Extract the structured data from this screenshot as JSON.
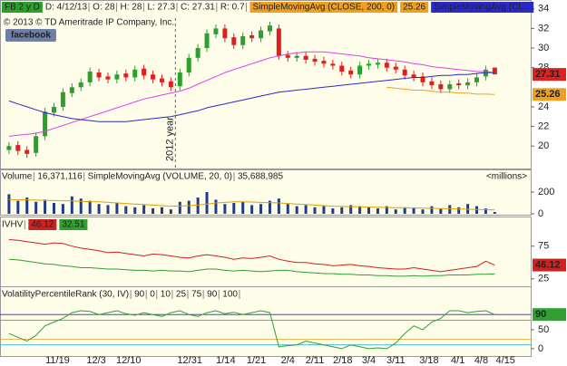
{
  "chart_data": [
    {
      "type": "candlestick",
      "title": "FB 2 y D",
      "header": [
        "D: 4/12/13",
        "O: 28",
        "H: 28",
        "L: 27.3",
        "C: 27.31",
        "R: 0.7"
      ],
      "copyright": "© 2013 © TD Ameritrade IP Company, Inc.",
      "badge": "facebook",
      "up_color": "#2ca02c",
      "down_color": "#e02020",
      "open": [
        19.6,
        20.1,
        19.6,
        19.3,
        21.0,
        23.4,
        24.0,
        25.4,
        26.0,
        26.5,
        27.5,
        27.1,
        26.8,
        27.4,
        27.0,
        27.9,
        27.3,
        26.9,
        26.6,
        26.1,
        27.5,
        29.0,
        30.0,
        31.4,
        32.0,
        31.1,
        30.3,
        31.3,
        31.0,
        31.7,
        32.0,
        29.3,
        29.0,
        29.2,
        28.9,
        28.7,
        28.4,
        28.2,
        27.7,
        27.3,
        28.2,
        28.3,
        28.5,
        28.1,
        27.8,
        27.3,
        27.1,
        26.6,
        26.3,
        25.8,
        26.4,
        26.2,
        26.5,
        27.1,
        28
      ],
      "high": [
        20.4,
        20.5,
        20.0,
        21.4,
        23.9,
        24.4,
        25.9,
        26.4,
        26.9,
        28.0,
        27.9,
        27.5,
        27.7,
        27.8,
        28.2,
        28.3,
        27.7,
        27.3,
        27.0,
        27.9,
        29.4,
        30.4,
        31.9,
        32.4,
        32.4,
        31.5,
        31.6,
        31.7,
        32.2,
        32.7,
        32.4,
        29.7,
        29.6,
        29.6,
        29.3,
        29.1,
        28.8,
        28.6,
        28.1,
        28.6,
        28.8,
        28.9,
        28.9,
        28.5,
        28.2,
        27.7,
        27.5,
        27.0,
        26.7,
        26.7,
        26.8,
        26.9,
        27.4,
        28.2,
        28
      ],
      "low": [
        19.2,
        19.1,
        18.8,
        18.9,
        20.6,
        23.0,
        23.6,
        25.0,
        25.6,
        26.1,
        26.6,
        26.4,
        26.4,
        26.6,
        26.6,
        26.8,
        26.4,
        26.1,
        25.6,
        25.7,
        27.1,
        28.6,
        29.6,
        31.0,
        30.6,
        29.9,
        29.9,
        30.6,
        30.6,
        31.3,
        28.8,
        28.6,
        28.6,
        28.4,
        28.2,
        28.0,
        27.8,
        27.2,
        26.9,
        26.9,
        27.8,
        27.9,
        27.6,
        27.4,
        26.8,
        26.6,
        26.1,
        25.8,
        25.4,
        25.4,
        25.8,
        25.8,
        26.1,
        26.7,
        27.3
      ],
      "close": [
        20.0,
        19.5,
        19.2,
        21.0,
        23.5,
        24.0,
        25.5,
        26.0,
        26.5,
        27.6,
        27.0,
        26.8,
        27.3,
        27.0,
        27.8,
        27.2,
        26.8,
        26.5,
        26.0,
        27.5,
        29.0,
        30.0,
        31.5,
        32.0,
        31.0,
        30.3,
        31.2,
        31.0,
        31.8,
        32.3,
        29.2,
        29.0,
        29.2,
        28.8,
        28.6,
        28.4,
        28.2,
        27.6,
        27.3,
        28.2,
        28.4,
        28.5,
        28.0,
        27.8,
        27.2,
        27.0,
        26.5,
        26.2,
        25.8,
        26.3,
        26.2,
        26.5,
        27.0,
        27.8,
        27.31
      ],
      "series": [
        {
          "color": "#e040e0",
          "values": [
            21.0,
            21.1,
            21.2,
            21.3,
            21.5,
            21.8,
            22.1,
            22.4,
            22.7,
            23.0,
            23.3,
            23.6,
            23.9,
            24.2,
            24.5,
            24.8,
            25.0,
            25.2,
            25.4,
            25.6,
            25.9,
            26.3,
            26.7,
            27.1,
            27.5,
            27.8,
            28.1,
            28.4,
            28.7,
            29.0,
            29.2,
            29.4,
            29.5,
            29.6,
            29.6,
            29.6,
            29.5,
            29.4,
            29.3,
            29.2,
            29.0,
            28.9,
            28.8,
            28.7,
            28.6,
            28.4,
            28.3,
            28.1,
            28.0,
            27.9,
            27.8,
            27.7,
            27.6,
            27.6,
            27.5
          ]
        },
        {
          "name": "SimpleMovingAvg (CL...",
          "color": "#2a2ac8",
          "values": [
            24.6,
            24.3,
            24.0,
            23.7,
            23.4,
            23.2,
            23.0,
            22.8,
            22.7,
            22.6,
            22.5,
            22.5,
            22.5,
            22.5,
            22.6,
            22.7,
            22.8,
            22.9,
            23.0,
            23.2,
            23.4,
            23.6,
            23.9,
            24.1,
            24.3,
            24.5,
            24.7,
            24.9,
            25.1,
            25.3,
            25.5,
            25.6,
            25.7,
            25.8,
            25.9,
            26.0,
            26.1,
            26.2,
            26.3,
            26.4,
            26.5,
            26.6,
            26.7,
            26.8,
            26.9,
            27.0,
            27.0,
            27.1,
            27.2,
            27.2,
            27.3,
            27.3,
            27.4,
            27.5,
            27.5
          ]
        },
        {
          "name": "SimpleMovingAvg (CLOSE, 200, 0)",
          "color": "#f0a020",
          "values": [
            null,
            null,
            null,
            null,
            null,
            null,
            null,
            null,
            null,
            null,
            null,
            null,
            null,
            null,
            null,
            null,
            null,
            null,
            null,
            null,
            null,
            null,
            null,
            null,
            null,
            null,
            null,
            null,
            null,
            null,
            null,
            null,
            null,
            null,
            null,
            null,
            null,
            null,
            null,
            null,
            null,
            null,
            26.0,
            25.9,
            25.8,
            25.7,
            25.7,
            25.6,
            25.5,
            25.5,
            25.4,
            25.4,
            25.3,
            25.3,
            25.26
          ]
        }
      ],
      "annotation": {
        "x": 18.5,
        "label": "2012 year"
      },
      "xlim": [
        -1,
        58
      ],
      "ylim": [
        17.8,
        34.9
      ],
      "yticks": [
        20,
        22,
        24,
        28,
        30,
        32,
        34
      ]
    },
    {
      "type": "bar",
      "title": "Volume",
      "current": "16,371,116",
      "unit": "<millions>",
      "color": "#1f3c88",
      "values": [
        180,
        120,
        150,
        110,
        130,
        100,
        90,
        160,
        140,
        120,
        90,
        80,
        100,
        70,
        60,
        80,
        50,
        60,
        40,
        110,
        120,
        150,
        200,
        130,
        90,
        100,
        110,
        80,
        90,
        120,
        140,
        90,
        70,
        80,
        60,
        70,
        50,
        60,
        80,
        70,
        60,
        50,
        70,
        40,
        60,
        50,
        40,
        70,
        50,
        80,
        60,
        90,
        70,
        50,
        16.4
      ],
      "series": [
        {
          "name": "SimpleMovingAvg (VOLUME, 20, 0)",
          "current": "35,688,985",
          "color": "#e0a000",
          "values": [
            130,
            130,
            128,
            126,
            124,
            122,
            120,
            118,
            115,
            112,
            110,
            105,
            100,
            95,
            90,
            85,
            80,
            75,
            70,
            72,
            75,
            80,
            90,
            100,
            105,
            110,
            110,
            108,
            105,
            102,
            100,
            95,
            90,
            85,
            80,
            75,
            70,
            68,
            66,
            64,
            62,
            60,
            58,
            56,
            55,
            54,
            52,
            50,
            48,
            46,
            44,
            42,
            40,
            38,
            35.7
          ]
        }
      ],
      "xlim": [
        -1,
        58
      ],
      "ylim": [
        0,
        400
      ],
      "yticks": [
        0,
        200
      ]
    },
    {
      "type": "line",
      "title": "IVHV",
      "series": [
        {
          "color": "#d02020",
          "values": [
            85,
            84,
            82,
            80,
            78,
            80,
            79,
            75,
            72,
            70,
            68,
            65,
            66,
            64,
            62,
            60,
            63,
            62,
            60,
            58,
            57,
            60,
            62,
            60,
            58,
            55,
            57,
            56,
            58,
            60,
            55,
            52,
            50,
            50,
            48,
            47,
            45,
            46,
            47,
            45,
            44,
            42,
            41,
            40,
            40,
            42,
            40,
            38,
            36,
            38,
            40,
            42,
            44,
            52,
            46.12
          ]
        },
        {
          "color": "#30a030",
          "values": [
            55,
            54,
            52,
            50,
            48,
            47,
            45,
            44,
            42,
            42,
            41,
            40,
            40,
            39,
            38,
            38,
            37,
            38,
            37,
            37,
            36,
            38,
            40,
            40,
            38,
            37,
            38,
            37,
            36,
            37,
            38,
            38,
            36,
            35,
            34,
            33,
            33,
            32,
            32,
            31,
            31,
            30,
            30,
            29,
            29,
            30,
            29,
            30,
            30,
            31,
            31,
            31,
            32,
            32,
            32.51
          ]
        }
      ],
      "xlim": [
        -1,
        58
      ],
      "ylim": [
        15,
        119
      ],
      "yticks": [
        25,
        75
      ]
    },
    {
      "type": "line",
      "title": "VolatilityPercentileRank (30, IV)",
      "levels": [
        {
          "value": 90,
          "color": "#30a030"
        },
        {
          "value": 0,
          "color": "#e040e0"
        },
        {
          "value": 10,
          "color": "#30b0e0"
        },
        {
          "value": 25,
          "color": "#f0a020"
        },
        {
          "value": 75,
          "color": "#e07020"
        },
        {
          "value": 90,
          "color": "#2a2ac8"
        },
        {
          "value": 100,
          "color": "#888888"
        }
      ],
      "series": [
        {
          "color": "#30a030",
          "values": [
            40,
            30,
            20,
            35,
            60,
            70,
            80,
            95,
            100,
            98,
            90,
            95,
            100,
            92,
            88,
            95,
            90,
            85,
            95,
            100,
            90,
            85,
            95,
            100,
            92,
            96,
            90,
            95,
            100,
            95,
            5,
            8,
            10,
            20,
            15,
            10,
            5,
            0,
            10,
            5,
            0,
            2,
            0,
            15,
            40,
            60,
            50,
            70,
            80,
            100,
            100,
            95,
            98,
            100,
            90
          ]
        }
      ],
      "xlim": [
        -1,
        58
      ],
      "ylim": [
        -17,
        162
      ],
      "yticks": [
        0,
        50
      ],
      "xticks": [
        {
          "value": 5.4,
          "label": "11/19"
        },
        {
          "value": 9.7,
          "label": "12/3"
        },
        {
          "value": 13.3,
          "label": "12/10"
        },
        {
          "value": 20.1,
          "label": "12/31"
        },
        {
          "value": 24.1,
          "label": "1/14"
        },
        {
          "value": 27.5,
          "label": "1/21"
        },
        {
          "value": 31.0,
          "label": "2/4"
        },
        {
          "value": 34.0,
          "label": "2/11"
        },
        {
          "value": 37.1,
          "label": "2/18"
        },
        {
          "value": 40.0,
          "label": "3/4"
        },
        {
          "value": 43.0,
          "label": "3/11"
        },
        {
          "value": 46.7,
          "label": "3/18"
        },
        {
          "value": 49.9,
          "label": "4/1"
        },
        {
          "value": 52.5,
          "label": "4/8"
        },
        {
          "value": 55.2,
          "label": "4/15"
        }
      ]
    }
  ]
}
